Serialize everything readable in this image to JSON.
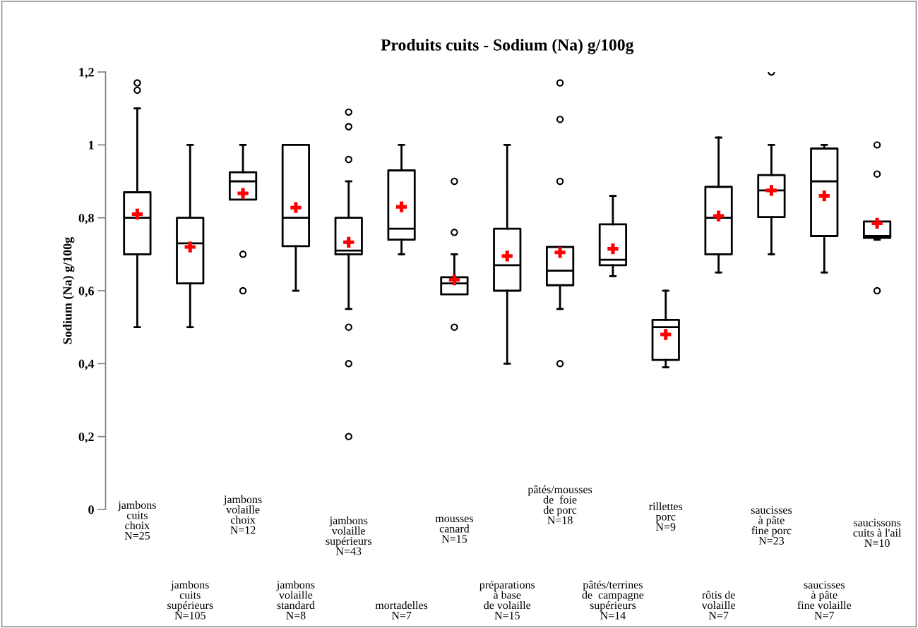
{
  "chart_data": {
    "type": "box",
    "title": "Produits cuits - Sodium (Na) g/100g",
    "ylabel": "Sodium (Na) g/100g",
    "categories": [
      "jambons\ncuits\nchoix\nN=25",
      "jambons\ncuits\nsupérieurs\nN=105",
      "jambons\nvolaille\nchoix\nN=12",
      "jambons\nvolaille\nstandard\nN=8",
      "jambons\nvolaille\nsupérieurs\nN=43",
      "mortadelles\nN=7",
      "mousses\ncanard\nN=15",
      "préparations\nà base\nde volaille\nN=15",
      "pâtés/mousses\nde  foie\nde porc\nN=18",
      "pâtés/terrines\nde  campagne\nsupérieurs\nN=14",
      "rillettes\nporc\nN=9",
      "rôtis de\nvolaille\nN=7",
      "saucisses\nà pâte\nfine porc\nN=23",
      "saucisses\nà pâte\nfine volaille\nN=7",
      "saucissons\ncuits à l'ail\nN=10"
    ],
    "boxes": [
      {
        "low": 0.5,
        "q1": 0.7,
        "median": 0.8,
        "q3": 0.87,
        "high": 1.1,
        "mean": 0.81,
        "outliers": [
          1.15,
          1.17
        ]
      },
      {
        "low": 0.5,
        "q1": 0.62,
        "median": 0.73,
        "q3": 0.8,
        "high": 1.0,
        "mean": 0.72
      },
      {
        "low": 0.85,
        "q1": 0.85,
        "median": 0.9,
        "q3": 0.925,
        "high": 1.0,
        "mean": 0.867,
        "outliers": [
          0.7,
          0.6
        ]
      },
      {
        "low": 0.6,
        "q1": 0.722,
        "median": 0.8,
        "q3": 1.0,
        "high": 1.0,
        "mean": 0.828
      },
      {
        "low": 0.55,
        "q1": 0.7,
        "median": 0.71,
        "q3": 0.8,
        "high": 0.9,
        "mean": 0.733,
        "outliers": [
          1.09,
          1.05,
          0.96,
          0.5,
          0.4,
          0.2
        ]
      },
      {
        "low": 0.7,
        "q1": 0.74,
        "median": 0.77,
        "q3": 0.93,
        "high": 1.0,
        "mean": 0.83
      },
      {
        "low": 0.59,
        "q1": 0.59,
        "median": 0.62,
        "q3": 0.637,
        "high": 0.7,
        "mean": 0.63,
        "outliers": [
          0.9,
          0.76,
          0.5
        ]
      },
      {
        "low": 0.4,
        "q1": 0.6,
        "median": 0.67,
        "q3": 0.77,
        "high": 1.0,
        "mean": 0.695
      },
      {
        "low": 0.55,
        "q1": 0.615,
        "median": 0.655,
        "q3": 0.72,
        "high": 0.72,
        "mean": 0.705,
        "outliers": [
          1.17,
          1.07,
          0.9,
          0.4
        ]
      },
      {
        "low": 0.64,
        "q1": 0.67,
        "median": 0.685,
        "q3": 0.782,
        "high": 0.86,
        "mean": 0.715
      },
      {
        "low": 0.39,
        "q1": 0.41,
        "median": 0.5,
        "q3": 0.52,
        "high": 0.6,
        "mean": 0.48
      },
      {
        "low": 0.65,
        "q1": 0.7,
        "median": 0.8,
        "q3": 0.885,
        "high": 1.02,
        "mean": 0.805
      },
      {
        "low": 0.7,
        "q1": 0.802,
        "median": 0.875,
        "q3": 0.917,
        "high": 1.0,
        "mean": 0.875,
        "outliers": [
          1.2
        ]
      },
      {
        "low": 0.65,
        "q1": 0.75,
        "median": 0.9,
        "q3": 0.99,
        "high": 1.0,
        "mean": 0.86
      },
      {
        "low": 0.74,
        "q1": 0.745,
        "median": 0.75,
        "q3": 0.79,
        "high": 0.79,
        "mean": 0.785,
        "outliers": [
          1.0,
          0.92,
          0.6
        ]
      }
    ],
    "ylim": [
      0,
      1.2
    ],
    "yticks": [
      0,
      {
        "value": 0.2,
        "label": "0,2"
      },
      {
        "value": 0.4,
        "label": "0,4"
      },
      {
        "value": 0.6,
        "label": "0,6"
      },
      {
        "value": 0.8,
        "label": "0,8"
      },
      {
        "value": 1,
        "label": "1"
      },
      {
        "value": 1.2,
        "label": "1,2"
      }
    ],
    "grid": false,
    "legend": false
  }
}
